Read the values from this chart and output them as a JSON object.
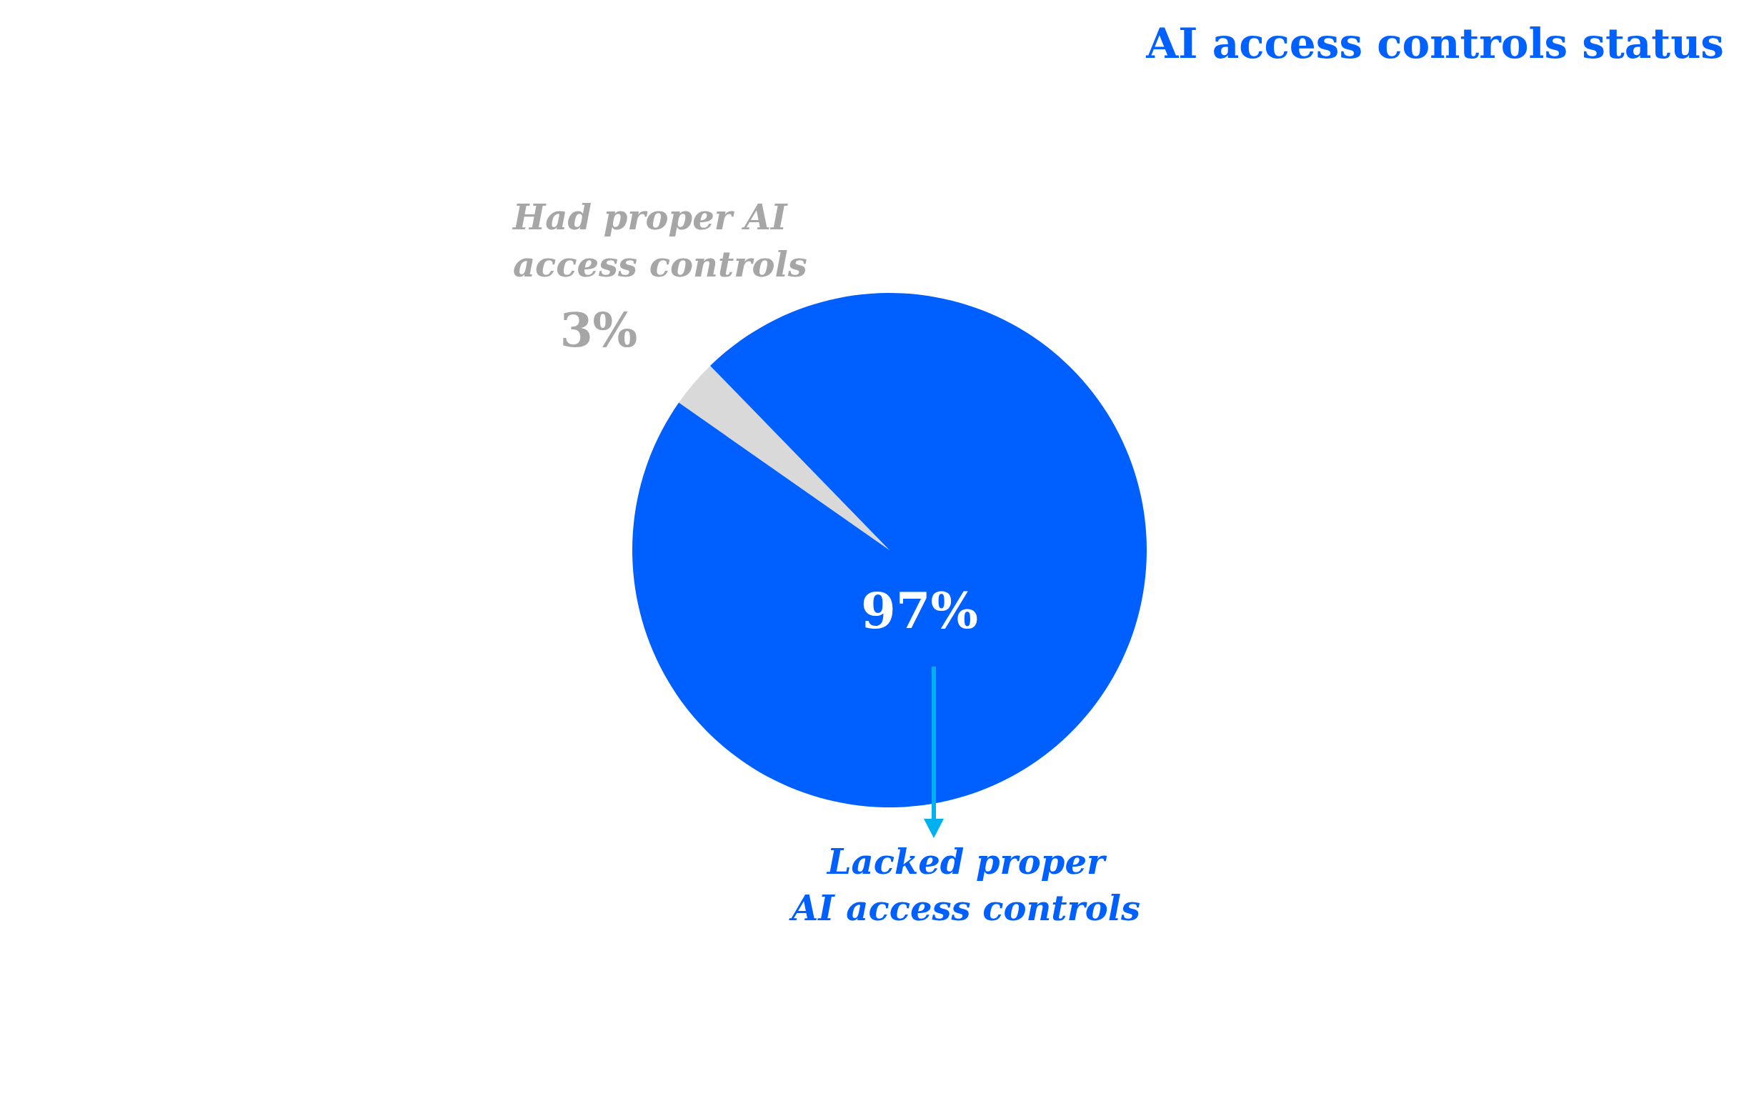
{
  "chart_data": {
    "type": "pie",
    "title": "AI access controls status",
    "categories": [
      "Had proper AI access controls",
      "Lacked proper AI access controls"
    ],
    "values": [
      3,
      97
    ],
    "colors": [
      "#d9d9d9",
      "#0060ff"
    ],
    "value_labels": [
      "3%",
      "97%"
    ]
  }
}
